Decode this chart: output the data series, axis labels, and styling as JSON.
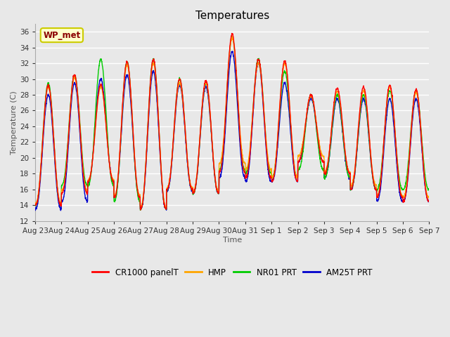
{
  "title": "Temperatures",
  "xlabel": "Time",
  "ylabel": "Temperature (C)",
  "ylim": [
    12,
    37
  ],
  "yticks": [
    12,
    14,
    16,
    18,
    20,
    22,
    24,
    26,
    28,
    30,
    32,
    34,
    36
  ],
  "annotation_text": "WP_met",
  "x_labels": [
    "Aug 23",
    "Aug 24",
    "Aug 25",
    "Aug 26",
    "Aug 27",
    "Aug 28",
    "Aug 29",
    "Aug 30",
    "Aug 31",
    "Sep 1",
    "Sep 2",
    "Sep 3",
    "Sep 4",
    "Sep 5",
    "Sep 6",
    "Sep 7"
  ],
  "series_names": [
    "CR1000 panelT",
    "HMP",
    "NR01 PRT",
    "AM25T PRT"
  ],
  "series_colors": [
    "#ff0000",
    "#ffa500",
    "#00cc00",
    "#0000cc"
  ],
  "background_color": "#e8e8e8",
  "plot_bg_color": "#e8e8e8",
  "grid_color": "#ffffff",
  "days": 15,
  "pts_per_day": 144,
  "daily_max_cr1000": [
    29.2,
    30.5,
    29.3,
    32.2,
    32.5,
    30.0,
    29.8,
    35.7,
    32.5,
    32.3,
    28.0,
    28.8,
    29.0,
    29.2,
    28.7
  ],
  "daily_min_cr1000": [
    14.0,
    15.5,
    17.0,
    15.0,
    13.5,
    16.0,
    15.5,
    18.2,
    17.5,
    17.0,
    19.5,
    18.0,
    16.0,
    15.0,
    14.5
  ],
  "daily_max_hmp": [
    29.0,
    30.2,
    29.0,
    31.8,
    32.0,
    29.5,
    29.5,
    35.2,
    32.0,
    32.0,
    27.8,
    28.5,
    28.5,
    29.0,
    28.3
  ],
  "daily_min_hmp": [
    14.2,
    15.8,
    17.2,
    15.2,
    13.8,
    16.2,
    15.8,
    19.3,
    18.5,
    17.5,
    20.2,
    18.2,
    16.5,
    15.2,
    15.0
  ],
  "daily_max_nr01": [
    29.5,
    30.5,
    32.5,
    32.2,
    32.5,
    30.0,
    29.5,
    35.3,
    32.5,
    31.0,
    28.0,
    28.0,
    28.0,
    28.5,
    28.5
  ],
  "daily_min_nr01": [
    14.0,
    16.5,
    16.5,
    14.5,
    13.5,
    16.0,
    15.5,
    18.5,
    18.0,
    17.5,
    18.5,
    17.5,
    16.0,
    16.0,
    16.0
  ],
  "daily_max_am25": [
    28.0,
    29.5,
    30.0,
    30.5,
    31.0,
    29.2,
    29.0,
    33.5,
    32.0,
    29.5,
    27.5,
    27.5,
    27.5,
    27.5,
    27.5
  ],
  "daily_min_am25": [
    13.5,
    14.5,
    17.0,
    15.0,
    13.5,
    15.8,
    15.5,
    17.5,
    17.0,
    17.0,
    19.5,
    17.5,
    16.0,
    14.5,
    14.5
  ]
}
